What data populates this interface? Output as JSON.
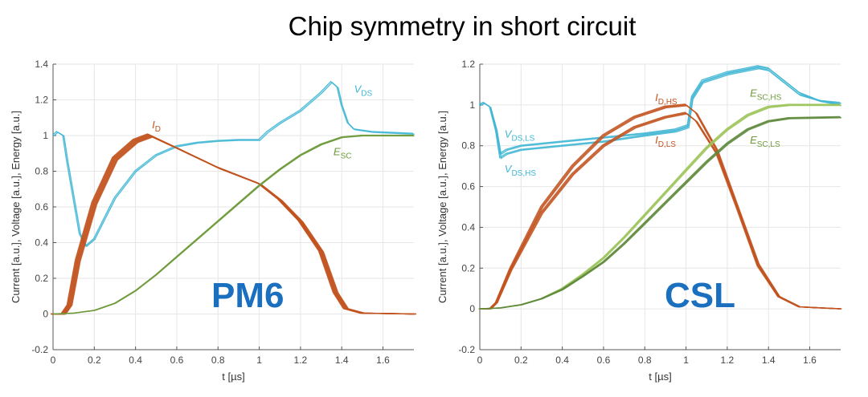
{
  "title": "Chip symmetry in short circuit",
  "colors": {
    "vds": "#3fb6d4",
    "id": "#c2531f",
    "esc": "#6e9a3b",
    "esc_light": "#9cc45a",
    "label_blue": "#1a6fbf"
  },
  "chart_data": [
    {
      "type": "line",
      "name": "PM6",
      "big_label": "PM6",
      "xlabel": "t [µs]",
      "ylabel": "Current [a.u.], Voltage [a.u.], Energy [a.u.]",
      "xlim": [
        0,
        1.75
      ],
      "ylim": [
        -0.2,
        1.4
      ],
      "xticks": [
        0,
        0.2,
        0.4,
        0.6,
        0.8,
        1,
        1.2,
        1.4,
        1.6
      ],
      "yticks": [
        -0.2,
        0,
        0.2,
        0.4,
        0.6,
        0.8,
        1,
        1.2,
        1.4
      ],
      "grid": true,
      "annotations": [
        {
          "name": "vds",
          "text": "V",
          "sub": "DS",
          "color": "#3fb6d4",
          "at": [
            1.46,
            1.24
          ]
        },
        {
          "name": "id",
          "text": "I",
          "sub": "D",
          "color": "#c2531f",
          "at": [
            0.48,
            1.04
          ]
        },
        {
          "name": "esc",
          "text": "E",
          "sub": "SC",
          "color": "#6e9a3b",
          "at": [
            1.36,
            0.89
          ]
        }
      ],
      "series": [
        {
          "name": "VDS",
          "color": "#3fb6d4",
          "copies": 2,
          "points": [
            [
              0,
              1.0
            ],
            [
              0.02,
              1.02
            ],
            [
              0.05,
              1.0
            ],
            [
              0.07,
              0.85
            ],
            [
              0.1,
              0.65
            ],
            [
              0.13,
              0.45
            ],
            [
              0.16,
              0.38
            ],
            [
              0.2,
              0.42
            ],
            [
              0.3,
              0.65
            ],
            [
              0.4,
              0.8
            ],
            [
              0.5,
              0.89
            ],
            [
              0.6,
              0.94
            ],
            [
              0.7,
              0.96
            ],
            [
              0.8,
              0.97
            ],
            [
              0.9,
              0.975
            ],
            [
              1.0,
              0.975
            ],
            [
              1.04,
              1.02
            ],
            [
              1.1,
              1.07
            ],
            [
              1.2,
              1.14
            ],
            [
              1.3,
              1.24
            ],
            [
              1.35,
              1.3
            ],
            [
              1.38,
              1.27
            ],
            [
              1.4,
              1.17
            ],
            [
              1.43,
              1.07
            ],
            [
              1.46,
              1.035
            ],
            [
              1.55,
              1.02
            ],
            [
              1.75,
              1.01
            ]
          ]
        },
        {
          "name": "ID",
          "color": "#c2531f",
          "copies": 8,
          "spread": 0.03,
          "points": [
            [
              0,
              0
            ],
            [
              0.05,
              0
            ],
            [
              0.08,
              0.05
            ],
            [
              0.12,
              0.3
            ],
            [
              0.2,
              0.62
            ],
            [
              0.3,
              0.87
            ],
            [
              0.4,
              0.97
            ],
            [
              0.47,
              1.0
            ],
            [
              0.6,
              0.93
            ],
            [
              0.8,
              0.82
            ],
            [
              1.0,
              0.73
            ],
            [
              1.1,
              0.64
            ],
            [
              1.2,
              0.52
            ],
            [
              1.3,
              0.35
            ],
            [
              1.37,
              0.12
            ],
            [
              1.42,
              0.03
            ],
            [
              1.5,
              0.005
            ],
            [
              1.75,
              0.0
            ]
          ]
        },
        {
          "name": "ESC",
          "color": "#6e9a3b",
          "copies": 3,
          "spread": 0.006,
          "points": [
            [
              0,
              0
            ],
            [
              0.1,
              0.005
            ],
            [
              0.2,
              0.02
            ],
            [
              0.3,
              0.06
            ],
            [
              0.4,
              0.13
            ],
            [
              0.5,
              0.22
            ],
            [
              0.6,
              0.32
            ],
            [
              0.7,
              0.42
            ],
            [
              0.8,
              0.52
            ],
            [
              0.9,
              0.62
            ],
            [
              1.0,
              0.72
            ],
            [
              1.1,
              0.81
            ],
            [
              1.2,
              0.89
            ],
            [
              1.3,
              0.95
            ],
            [
              1.4,
              0.99
            ],
            [
              1.5,
              1.0
            ],
            [
              1.75,
              1.0
            ]
          ]
        }
      ]
    },
    {
      "type": "line",
      "name": "CSL",
      "big_label": "CSL",
      "xlabel": "t [µs]",
      "ylabel": "Current [a.u.], Voltage [a.u.], Energy [a.u.]",
      "xlim": [
        0,
        1.75
      ],
      "ylim": [
        -0.2,
        1.2
      ],
      "xticks": [
        0,
        0.2,
        0.4,
        0.6,
        0.8,
        1,
        1.2,
        1.4,
        1.6
      ],
      "yticks": [
        -0.2,
        0,
        0.2,
        0.4,
        0.6,
        0.8,
        1,
        1.2
      ],
      "grid": true,
      "annotations": [
        {
          "name": "vds-ls",
          "text": "V",
          "sub": "DS,LS",
          "color": "#3fb6d4",
          "at": [
            0.12,
            0.84
          ]
        },
        {
          "name": "vds-hs",
          "text": "V",
          "sub": "DS,HS",
          "color": "#3fb6d4",
          "at": [
            0.12,
            0.67
          ]
        },
        {
          "name": "id-hs",
          "text": "I",
          "sub": "D,HS",
          "color": "#c2531f",
          "at": [
            0.85,
            1.02
          ]
        },
        {
          "name": "id-ls",
          "text": "I",
          "sub": "D,LS",
          "color": "#c2531f",
          "at": [
            0.85,
            0.81
          ]
        },
        {
          "name": "esc-hs",
          "text": "E",
          "sub": "SC,HS",
          "color": "#6e9a3b",
          "at": [
            1.31,
            1.04
          ]
        },
        {
          "name": "esc-ls",
          "text": "E",
          "sub": "SC,LS",
          "color": "#6e9a3b",
          "at": [
            1.31,
            0.81
          ]
        }
      ],
      "series": [
        {
          "name": "VDS,LS",
          "color": "#3fb6d4",
          "copies": 2,
          "points": [
            [
              0,
              1.0
            ],
            [
              0.02,
              1.01
            ],
            [
              0.05,
              0.99
            ],
            [
              0.08,
              0.88
            ],
            [
              0.1,
              0.76
            ],
            [
              0.13,
              0.78
            ],
            [
              0.2,
              0.8
            ],
            [
              0.4,
              0.82
            ],
            [
              0.6,
              0.84
            ],
            [
              0.8,
              0.86
            ],
            [
              0.95,
              0.88
            ],
            [
              1.01,
              0.9
            ],
            [
              1.03,
              1.04
            ],
            [
              1.08,
              1.12
            ],
            [
              1.2,
              1.16
            ],
            [
              1.3,
              1.18
            ],
            [
              1.35,
              1.19
            ],
            [
              1.4,
              1.18
            ],
            [
              1.45,
              1.14
            ],
            [
              1.55,
              1.06
            ],
            [
              1.65,
              1.02
            ],
            [
              1.75,
              1.01
            ]
          ]
        },
        {
          "name": "VDS,HS",
          "color": "#3fb6d4",
          "copies": 2,
          "points": [
            [
              0,
              1.0
            ],
            [
              0.02,
              1.01
            ],
            [
              0.05,
              0.99
            ],
            [
              0.08,
              0.87
            ],
            [
              0.1,
              0.74
            ],
            [
              0.13,
              0.76
            ],
            [
              0.2,
              0.78
            ],
            [
              0.4,
              0.8
            ],
            [
              0.6,
              0.82
            ],
            [
              0.8,
              0.85
            ],
            [
              0.95,
              0.87
            ],
            [
              1.01,
              0.89
            ],
            [
              1.03,
              1.03
            ],
            [
              1.08,
              1.11
            ],
            [
              1.2,
              1.15
            ],
            [
              1.3,
              1.17
            ],
            [
              1.35,
              1.18
            ],
            [
              1.4,
              1.17
            ],
            [
              1.45,
              1.13
            ],
            [
              1.55,
              1.05
            ],
            [
              1.65,
              1.02
            ],
            [
              1.75,
              1.0
            ]
          ]
        },
        {
          "name": "ID,HS",
          "color": "#c2531f",
          "copies": 3,
          "spread": 0.012,
          "points": [
            [
              0,
              0
            ],
            [
              0.05,
              0
            ],
            [
              0.08,
              0.03
            ],
            [
              0.15,
              0.2
            ],
            [
              0.3,
              0.5
            ],
            [
              0.45,
              0.7
            ],
            [
              0.6,
              0.85
            ],
            [
              0.75,
              0.94
            ],
            [
              0.9,
              0.99
            ],
            [
              1.0,
              1.0
            ],
            [
              1.05,
              0.96
            ],
            [
              1.15,
              0.78
            ],
            [
              1.25,
              0.5
            ],
            [
              1.35,
              0.22
            ],
            [
              1.45,
              0.06
            ],
            [
              1.55,
              0.01
            ],
            [
              1.75,
              0.0
            ]
          ]
        },
        {
          "name": "ID,LS",
          "color": "#c2531f",
          "copies": 3,
          "spread": 0.012,
          "points": [
            [
              0,
              0
            ],
            [
              0.05,
              0
            ],
            [
              0.08,
              0.03
            ],
            [
              0.15,
              0.19
            ],
            [
              0.3,
              0.47
            ],
            [
              0.45,
              0.66
            ],
            [
              0.6,
              0.8
            ],
            [
              0.75,
              0.89
            ],
            [
              0.9,
              0.94
            ],
            [
              1.0,
              0.96
            ],
            [
              1.05,
              0.92
            ],
            [
              1.15,
              0.76
            ],
            [
              1.25,
              0.49
            ],
            [
              1.35,
              0.21
            ],
            [
              1.45,
              0.06
            ],
            [
              1.55,
              0.01
            ],
            [
              1.75,
              0.0
            ]
          ]
        },
        {
          "name": "ESC,HS",
          "color": "#9cc45a",
          "copies": 3,
          "spread": 0.01,
          "points": [
            [
              0,
              0
            ],
            [
              0.1,
              0.005
            ],
            [
              0.2,
              0.02
            ],
            [
              0.3,
              0.05
            ],
            [
              0.4,
              0.1
            ],
            [
              0.5,
              0.17
            ],
            [
              0.6,
              0.25
            ],
            [
              0.7,
              0.35
            ],
            [
              0.8,
              0.46
            ],
            [
              0.9,
              0.57
            ],
            [
              1.0,
              0.68
            ],
            [
              1.1,
              0.79
            ],
            [
              1.2,
              0.88
            ],
            [
              1.3,
              0.95
            ],
            [
              1.4,
              0.99
            ],
            [
              1.5,
              1.0
            ],
            [
              1.75,
              1.0
            ]
          ]
        },
        {
          "name": "ESC,LS",
          "color": "#5f8a3c",
          "copies": 3,
          "spread": 0.01,
          "points": [
            [
              0,
              0
            ],
            [
              0.1,
              0.005
            ],
            [
              0.2,
              0.02
            ],
            [
              0.3,
              0.05
            ],
            [
              0.4,
              0.095
            ],
            [
              0.5,
              0.16
            ],
            [
              0.6,
              0.23
            ],
            [
              0.7,
              0.32
            ],
            [
              0.8,
              0.42
            ],
            [
              0.9,
              0.52
            ],
            [
              1.0,
              0.62
            ],
            [
              1.1,
              0.72
            ],
            [
              1.2,
              0.81
            ],
            [
              1.3,
              0.88
            ],
            [
              1.4,
              0.92
            ],
            [
              1.5,
              0.935
            ],
            [
              1.75,
              0.94
            ]
          ]
        }
      ]
    }
  ]
}
